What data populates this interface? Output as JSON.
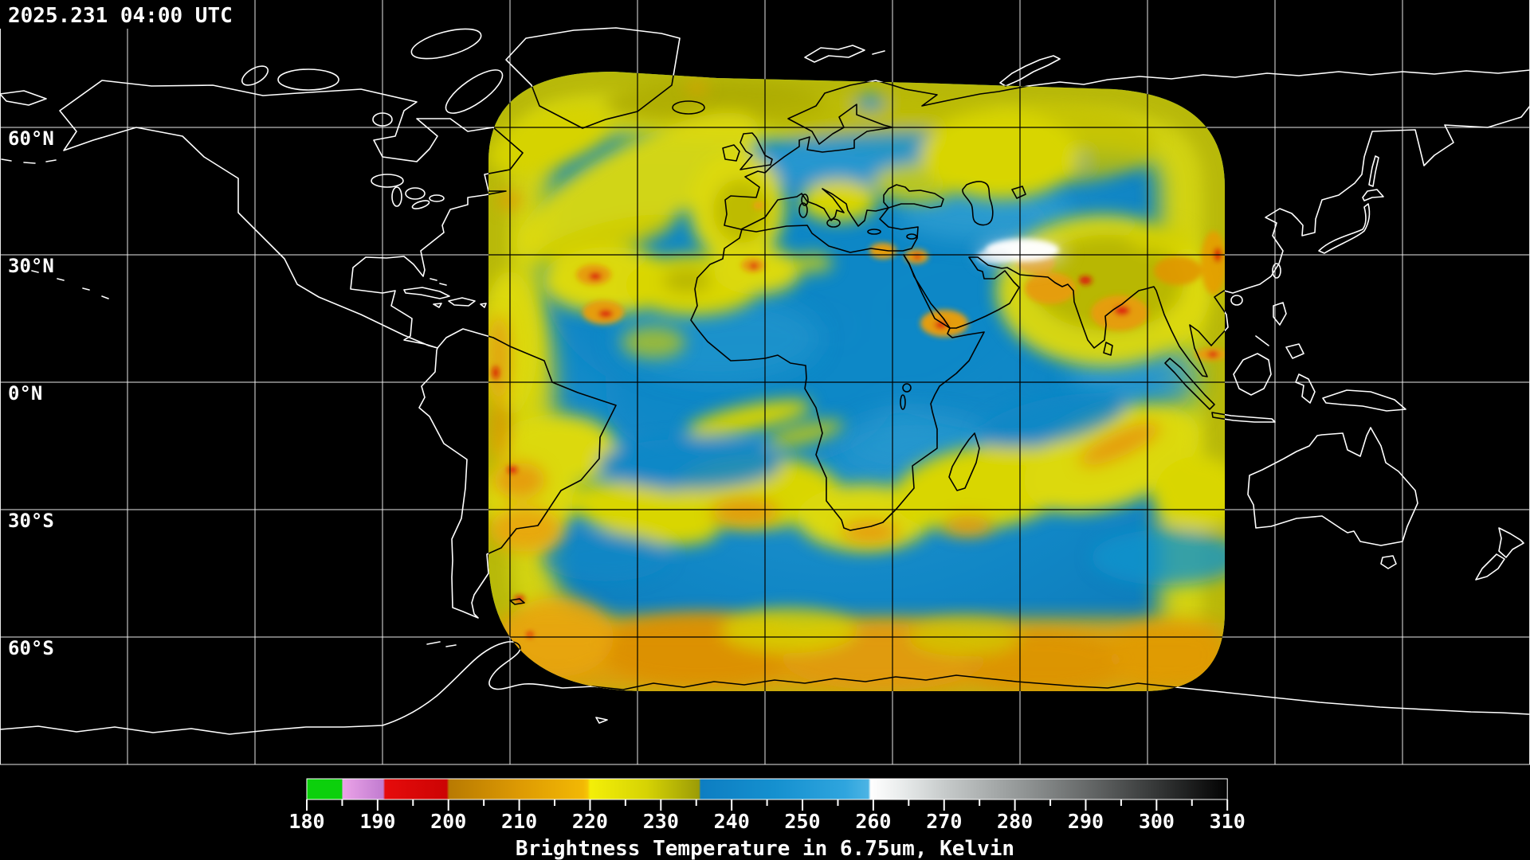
{
  "header": {
    "timestamp": "2025.231 04:00 UTC"
  },
  "map": {
    "projection": "equirectangular world map, 360 x 180 degrees",
    "latitude_labels": [
      "60°N",
      "30°N",
      "0°N",
      "30°S",
      "60°S"
    ],
    "grid": {
      "lon_step_deg": 30,
      "lat_step_deg": 30
    },
    "palette": {
      "background": "#000000",
      "grid_on_black": "#ffffff",
      "grid_on_swath": "#000000",
      "coast_on_black": "#ffffff",
      "coast_on_swath": "#000000",
      "swath_blue": "#1187c6",
      "swath_yellow": "#dcd907",
      "swath_olive": "#9c9c06",
      "swath_orange": "#e59d07",
      "swath_red": "#dc1208",
      "swath_warm_white": "#ffffff"
    }
  },
  "colorbar": {
    "caption": "Brightness Temperature in 6.75um, Kelvin",
    "unit": "Kelvin",
    "wavelength": "6.75um",
    "range_k": [
      180,
      310
    ],
    "tick_step_k": 10,
    "minor_tick_step_k": 5,
    "tick_labels": [
      "180",
      "190",
      "200",
      "210",
      "220",
      "230",
      "240",
      "250",
      "260",
      "270",
      "280",
      "290",
      "300",
      "310"
    ],
    "segments": [
      {
        "range": "180-185",
        "color": "#0cd00c",
        "name": "green"
      },
      {
        "range": "185-191",
        "color": "#d490dc",
        "name": "violet"
      },
      {
        "range": "191-200",
        "color": "#e00808",
        "name": "red"
      },
      {
        "range": "200-220",
        "color": "#cf8a03",
        "name": "orange"
      },
      {
        "range": "220-235",
        "color": "#c8c505",
        "name": "yellow-olive"
      },
      {
        "range": "235-260",
        "color": "#1d95d2",
        "name": "blue"
      },
      {
        "range": "260-310",
        "color": "#ffffff to #000000",
        "name": "white-to-black grayscale"
      }
    ]
  }
}
